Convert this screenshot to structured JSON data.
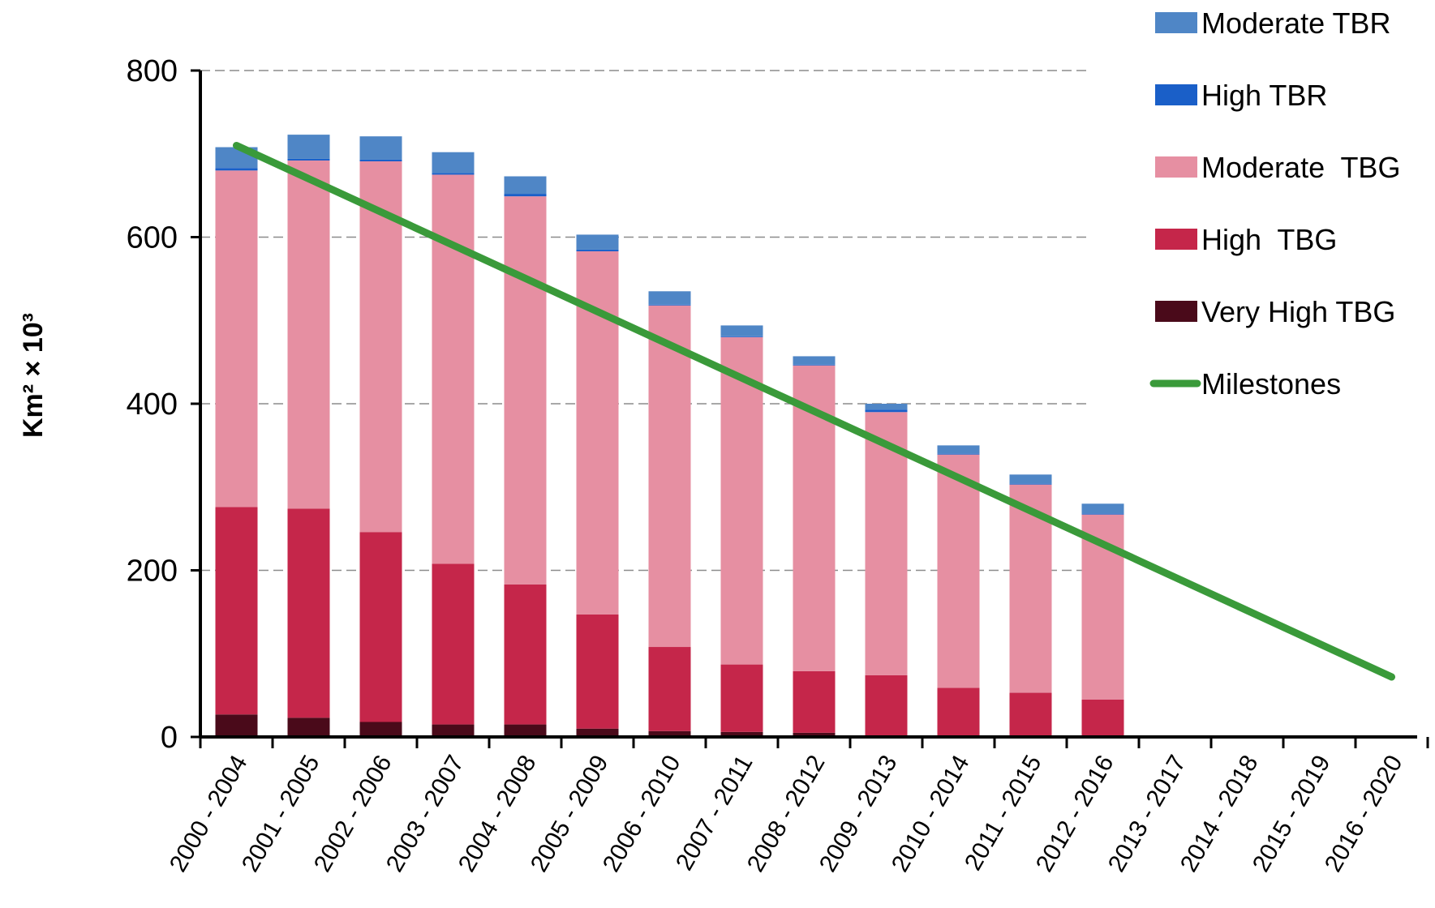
{
  "chart_data": {
    "type": "bar",
    "stacked": true,
    "ylabel": "Km² × 10³",
    "xlabel": "",
    "title": "",
    "ylim": [
      0,
      800
    ],
    "yticks": [
      0,
      200,
      400,
      600,
      800
    ],
    "grid": "horizontal dashed",
    "legend_position": "top-right",
    "categories": [
      "2000 - 2004",
      "2001 - 2005",
      "2002 - 2006",
      "2003 - 2007",
      "2004 - 2008",
      "2005 - 2009",
      "2006 - 2010",
      "2007 - 2011",
      "2008 - 2012",
      "2009 - 2013",
      "2010 - 2014",
      "2011 - 2015",
      "2012 - 2016",
      "2013 - 2017",
      "2014 - 2018",
      "2015 - 2019",
      "2016 - 2020"
    ],
    "series": [
      {
        "name": "Very High TBG",
        "color": "#4a0a1a",
        "values": [
          27,
          23,
          18,
          15,
          15,
          10,
          7,
          6,
          5,
          1,
          1,
          1,
          1,
          null,
          null,
          null,
          null
        ]
      },
      {
        "name": "High  TBG",
        "color": "#c5264a",
        "values": [
          249,
          251,
          228,
          193,
          168,
          137,
          101,
          81,
          74,
          73,
          58,
          52,
          44,
          null,
          null,
          null,
          null
        ]
      },
      {
        "name": "Moderate  TBG",
        "color": "#e68fa2",
        "values": [
          404,
          418,
          445,
          467,
          466,
          436,
          410,
          393,
          367,
          316,
          280,
          250,
          222,
          null,
          null,
          null,
          null
        ]
      },
      {
        "name": "High TBR",
        "color": "#1a5fc8",
        "values": [
          3,
          2,
          2,
          2,
          3,
          2,
          1,
          1,
          1,
          3,
          1,
          1,
          1,
          null,
          null,
          null,
          null
        ]
      },
      {
        "name": "Moderate TBR",
        "color": "#4f86c6",
        "values": [
          25,
          29,
          28,
          25,
          21,
          18,
          16,
          13,
          10,
          7,
          10,
          11,
          12,
          null,
          null,
          null,
          null
        ]
      }
    ],
    "line": {
      "name": "Milestones",
      "color": "#3a9a3a",
      "start": 710,
      "end": 72
    }
  },
  "legend": {
    "items": [
      {
        "label": "Moderate TBR",
        "color": "#4f86c6",
        "kind": "box"
      },
      {
        "label": "High TBR",
        "color": "#1a5fc8",
        "kind": "box"
      },
      {
        "label": "Moderate  TBG",
        "color": "#e68fa2",
        "kind": "box"
      },
      {
        "label": "High  TBG",
        "color": "#c5264a",
        "kind": "box"
      },
      {
        "label": "Very High TBG",
        "color": "#4a0a1a",
        "kind": "box"
      },
      {
        "label": "Milestones",
        "color": "#3a9a3a",
        "kind": "line"
      }
    ]
  }
}
